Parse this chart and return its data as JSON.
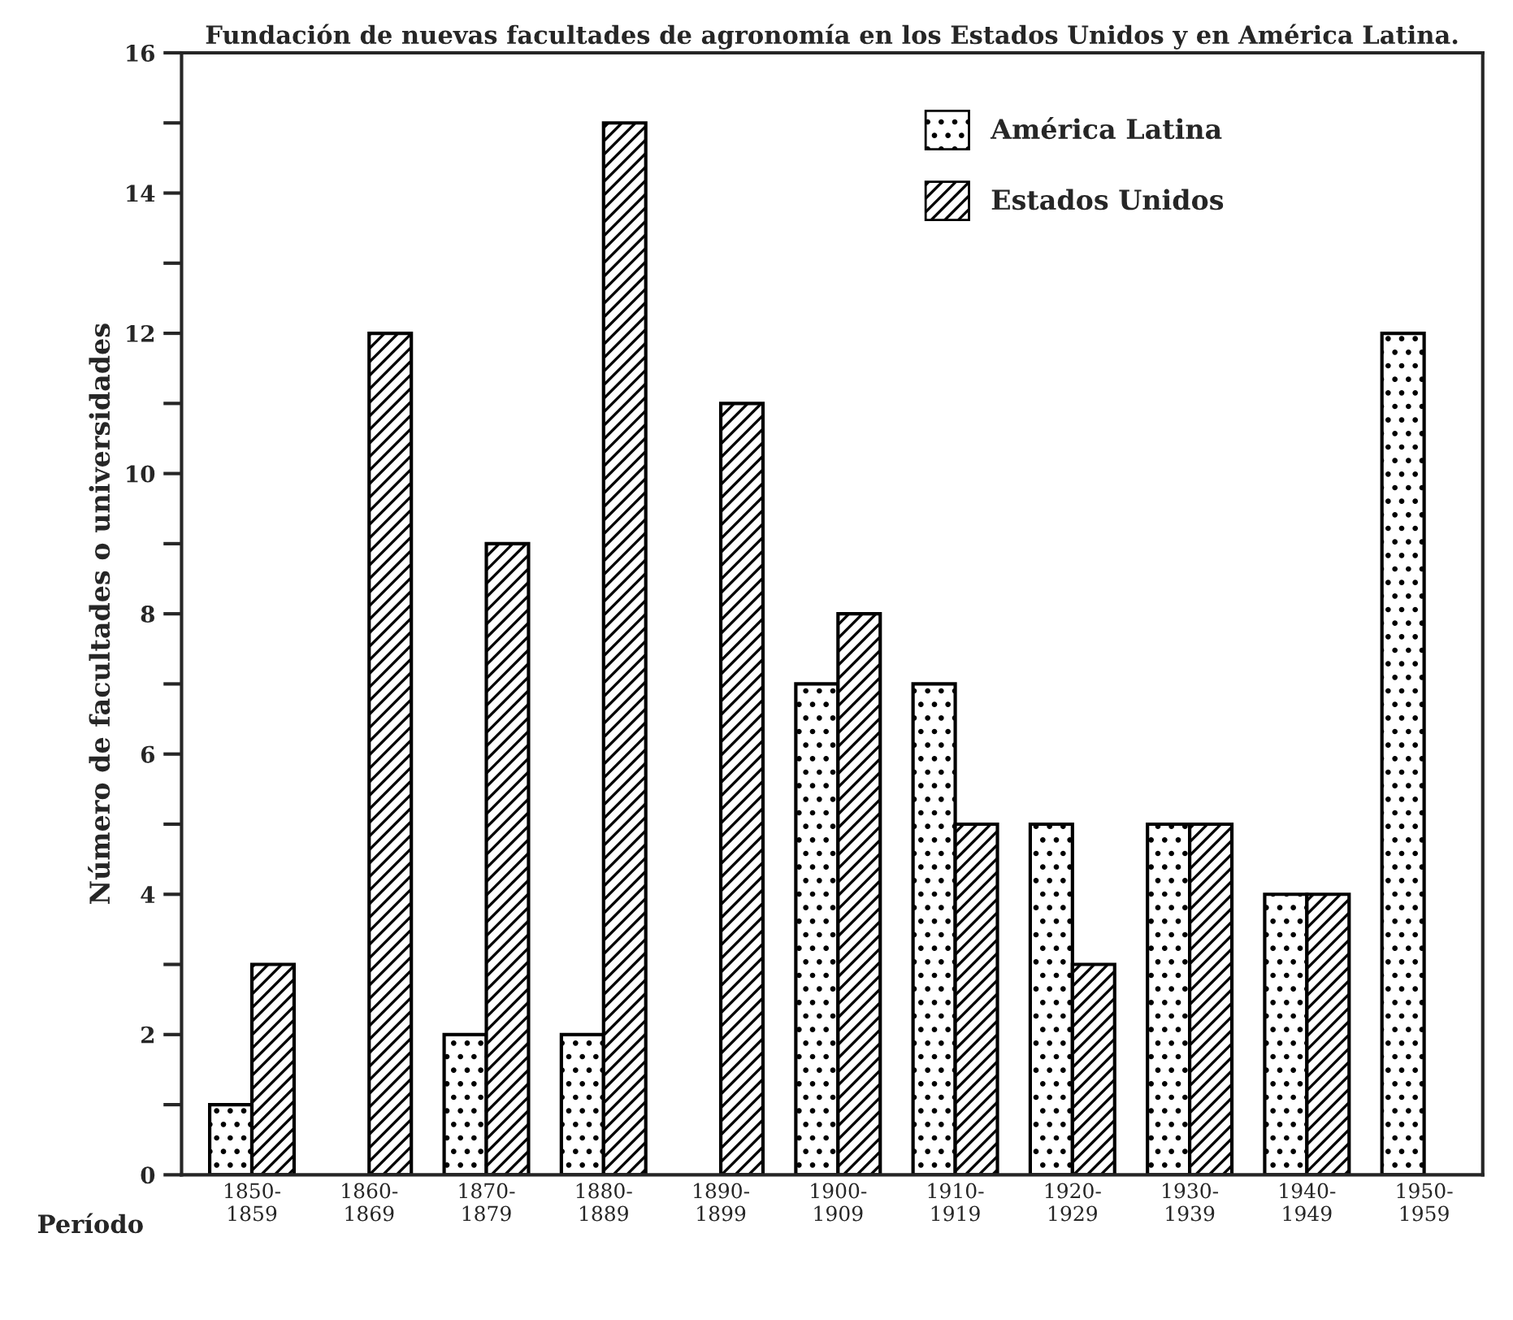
{
  "chart_data": {
    "type": "bar",
    "title": "Fundación de nuevas facultades de agronomía en los Estados Unidos y en América Latina.",
    "xlabel": "Período",
    "ylabel": "Número de facultades o universidades",
    "categories": [
      "1850-\n1859",
      "1860-\n1869",
      "1870-\n1879",
      "1880-\n1889",
      "1890-\n1899",
      "1900-\n1909",
      "1910-\n1919",
      "1920-\n1929",
      "1930-\n1939",
      "1940-\n1949",
      "1950-\n1959"
    ],
    "series": [
      {
        "name": "América Latina",
        "color": "#000000",
        "values": [
          1,
          null,
          2,
          2,
          null,
          7,
          7,
          5,
          5,
          4,
          12
        ]
      },
      {
        "name": "Estados Unidos",
        "color": "#000000",
        "values": [
          3,
          12,
          9,
          15,
          11,
          8,
          5,
          3,
          5,
          4,
          null
        ]
      }
    ],
    "ylim": [
      0,
      16
    ],
    "yticks": [
      0,
      {
        "value": 1,
        "label": null
      },
      2,
      {
        "value": 3,
        "label": null
      },
      4,
      {
        "value": 5,
        "label": null
      },
      6,
      {
        "value": 7,
        "label": null
      },
      8,
      {
        "value": 9,
        "label": null
      },
      10,
      {
        "value": 11,
        "label": null
      },
      12,
      {
        "value": 13,
        "label": null
      },
      14,
      {
        "value": 15,
        "label": null
      },
      16
    ],
    "grid": false,
    "legend": "top right"
  }
}
